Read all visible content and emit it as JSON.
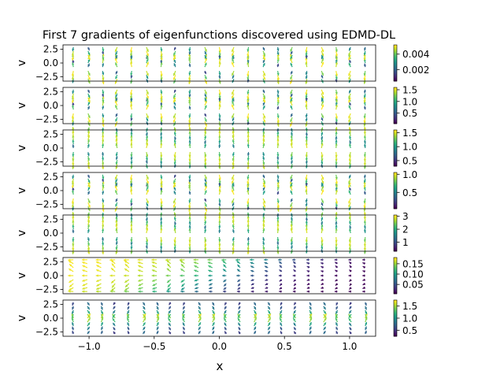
{
  "chart_data": {
    "type": "quiver",
    "title": "First 7 gradients of eigenfunctions discovered using EDMD-DL",
    "xlabel": "x",
    "x_ticks": [
      -1.0,
      -0.5,
      0.0,
      0.5,
      1.0
    ],
    "x_tick_labels": [
      "−1.0",
      "−0.5",
      "0.0",
      "0.5",
      "1.0"
    ],
    "xlim": [
      -1.2,
      1.2
    ],
    "colormap": "viridis",
    "grid": false,
    "panels": [
      {
        "ylabel": "v",
        "ylim": [
          -3.3,
          3.3
        ],
        "y_ticks": [
          -2.5,
          0.0,
          2.5
        ],
        "y_tick_labels": [
          "−2.5",
          "0.0",
          "2.5"
        ],
        "colorbar": {
          "range": [
            0.0005,
            0.0052
          ],
          "ticks": [
            0.002,
            0.004
          ],
          "tick_labels": [
            "0.002",
            "0.004"
          ]
        },
        "field": {
          "mode": "lobes",
          "amp_x": 0.55,
          "amp_v": 0.35,
          "bend": 0.8
        }
      },
      {
        "ylabel": "v",
        "ylim": [
          -3.3,
          3.3
        ],
        "y_ticks": [
          -2.5,
          0.0,
          2.5
        ],
        "y_tick_labels": [
          "−2.5",
          "0.0",
          "2.5"
        ],
        "colorbar": {
          "range": [
            0.05,
            1.6
          ],
          "ticks": [
            0.5,
            1.0,
            1.5
          ],
          "tick_labels": [
            "0.5",
            "1.0",
            "1.5"
          ]
        },
        "field": {
          "mode": "lobes",
          "amp_x": 0.35,
          "amp_v": 0.45,
          "bend": 0.6
        }
      },
      {
        "ylabel": "v",
        "ylim": [
          -3.3,
          3.3
        ],
        "y_ticks": [
          -2.5,
          0.0,
          2.5
        ],
        "y_tick_labels": [
          "−2.5",
          "0.0",
          "2.5"
        ],
        "colorbar": {
          "range": [
            0.3,
            1.6
          ],
          "ticks": [
            0.5,
            1.0,
            1.5
          ],
          "tick_labels": [
            "0.5",
            "1.0",
            "1.5"
          ]
        },
        "field": {
          "mode": "vertical",
          "amp_x": 0.15,
          "amp_v": 0.6,
          "bend": 0.3
        }
      },
      {
        "ylabel": "v",
        "ylim": [
          -3.3,
          3.3
        ],
        "y_ticks": [
          -2.5,
          0.0,
          2.5
        ],
        "y_tick_labels": [
          "−2.5",
          "0.0",
          "2.5"
        ],
        "colorbar": {
          "range": [
            0.05,
            1.05
          ],
          "ticks": [
            0.5,
            1.0
          ],
          "tick_labels": [
            "0.5",
            "1.0"
          ]
        },
        "field": {
          "mode": "lobes",
          "amp_x": 0.3,
          "amp_v": 0.4,
          "bend": 0.7
        }
      },
      {
        "ylabel": "v",
        "ylim": [
          -3.3,
          3.3
        ],
        "y_ticks": [
          -2.5,
          0.0,
          2.5
        ],
        "y_tick_labels": [
          "−2.5",
          "0.0",
          "2.5"
        ],
        "colorbar": {
          "range": [
            0.3,
            3.1
          ],
          "ticks": [
            1,
            2,
            3
          ],
          "tick_labels": [
            "1",
            "2",
            "3"
          ]
        },
        "field": {
          "mode": "vertical",
          "amp_x": 0.2,
          "amp_v": 0.55,
          "bend": 0.4
        }
      },
      {
        "ylabel": "v",
        "ylim": [
          -3.3,
          3.3
        ],
        "y_ticks": [
          -2.5,
          0.0,
          2.5
        ],
        "y_tick_labels": [
          "−2.5",
          "0.0",
          "2.5"
        ],
        "colorbar": {
          "range": [
            0.005,
            0.18
          ],
          "ticks": [
            0.05,
            0.1,
            0.15
          ],
          "tick_labels": [
            "0.05",
            "0.10",
            "0.15"
          ]
        },
        "field": {
          "mode": "ramp",
          "amp_x": 0.8,
          "amp_v": 0.5,
          "bend": 1.0
        }
      },
      {
        "ylabel": "v",
        "ylim": [
          -3.3,
          3.3
        ],
        "y_ticks": [
          -2.5,
          0.0,
          2.5
        ],
        "y_tick_labels": [
          "−2.5",
          "0.0",
          "2.5"
        ],
        "colorbar": {
          "range": [
            0.25,
            1.75
          ],
          "ticks": [
            0.5,
            1.0,
            1.5
          ],
          "tick_labels": [
            "0.5",
            "1.0",
            "1.5"
          ]
        },
        "field": {
          "mode": "dense",
          "amp_x": 0.5,
          "amp_v": 0.45,
          "bend": 0.9
        }
      }
    ]
  }
}
